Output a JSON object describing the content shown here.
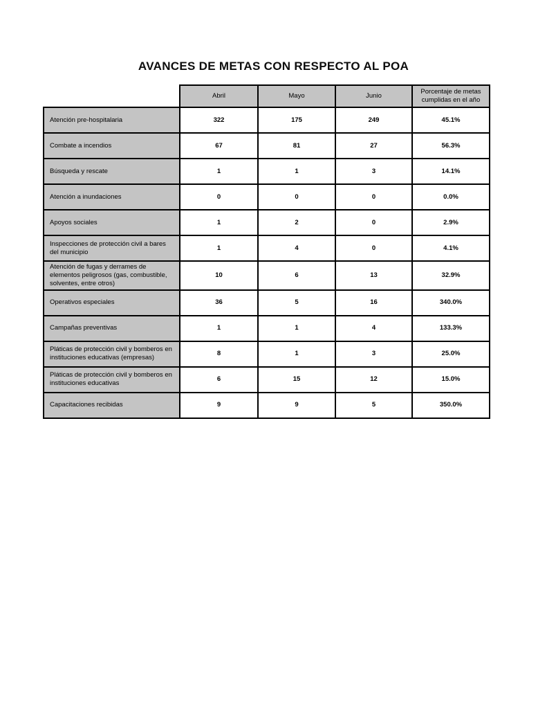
{
  "title": "AVANCES DE METAS CON RESPECTO AL POA",
  "colors": {
    "header_fill": "#c4c4c4",
    "border": "#000000",
    "page_bg": "#ffffff"
  },
  "table": {
    "col_headers": [
      "Abril",
      "Mayo",
      "Junio",
      "Porcentaje de metas cumplidas en el año"
    ],
    "rows": [
      {
        "label": "Atención pre-hospitalaria",
        "abril": "322",
        "mayo": "175",
        "junio": "249",
        "pct": "45.1%"
      },
      {
        "label": "Combate a incendios",
        "abril": "67",
        "mayo": "81",
        "junio": "27",
        "pct": "56.3%"
      },
      {
        "label": "Búsqueda y rescate",
        "abril": "1",
        "mayo": "1",
        "junio": "3",
        "pct": "14.1%"
      },
      {
        "label": "Atención a inundaciones",
        "abril": "0",
        "mayo": "0",
        "junio": "0",
        "pct": "0.0%"
      },
      {
        "label": "Apoyos sociales",
        "abril": "1",
        "mayo": "2",
        "junio": "0",
        "pct": "2.9%"
      },
      {
        "label": "Inspecciones de protección civil a bares del municipio",
        "abril": "1",
        "mayo": "4",
        "junio": "0",
        "pct": "4.1%"
      },
      {
        "label": "Atención de fugas y derrames de elementos peligrosos (gas, combustible, solventes, entre otros)",
        "abril": "10",
        "mayo": "6",
        "junio": "13",
        "pct": "32.9%"
      },
      {
        "label": "Operativos especiales",
        "abril": "36",
        "mayo": "5",
        "junio": "16",
        "pct": "340.0%"
      },
      {
        "label": "Campañas preventivas",
        "abril": "1",
        "mayo": "1",
        "junio": "4",
        "pct": "133.3%"
      },
      {
        "label": "Pláticas de protección civil y bomberos en instituciones educativas (empresas)",
        "abril": "8",
        "mayo": "1",
        "junio": "3",
        "pct": "25.0%"
      },
      {
        "label": "Pláticas de protección civil y bomberos en instituciones educativas",
        "abril": "6",
        "mayo": "15",
        "junio": "12",
        "pct": "15.0%"
      },
      {
        "label": "Capacitaciones recibidas",
        "abril": "9",
        "mayo": "9",
        "junio": "5",
        "pct": "350.0%"
      }
    ]
  }
}
